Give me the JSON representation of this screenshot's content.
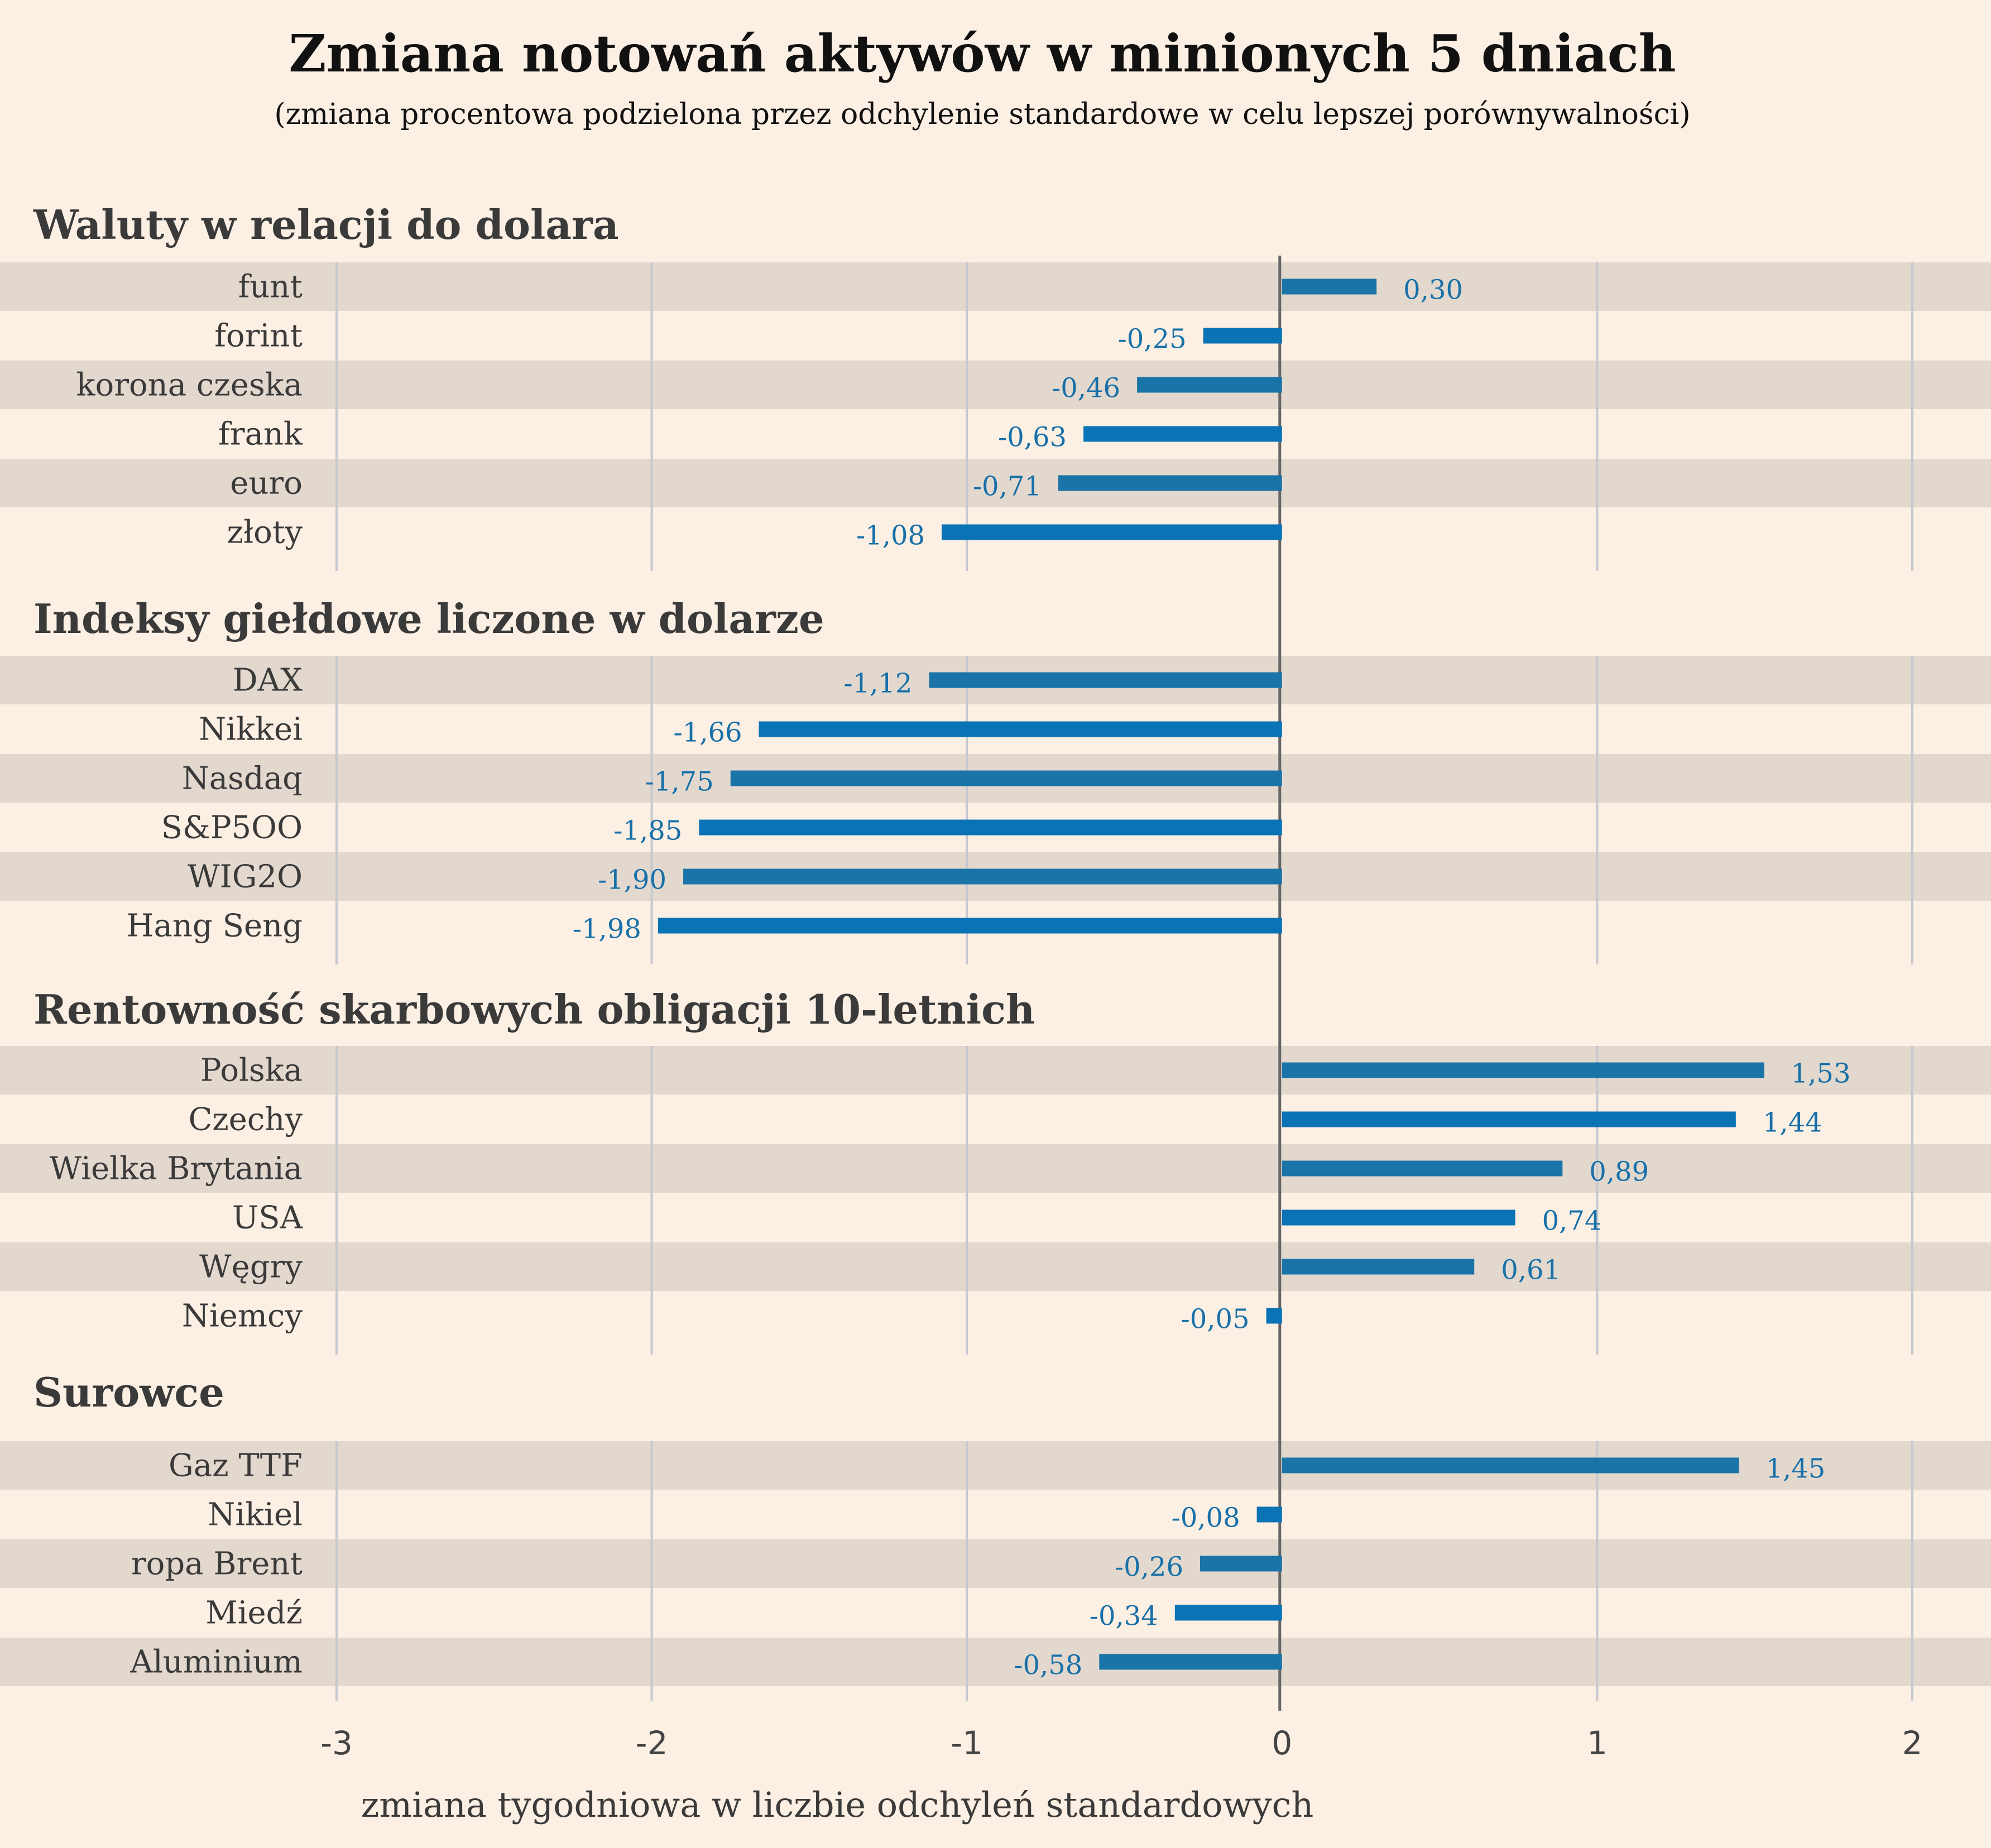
{
  "chart_data": {
    "type": "bar",
    "orientation": "horizontal",
    "title": "Zmiana notowań aktywów w minionych 5 dniach",
    "subtitle": "(zmiana procentowa podzielona przez odchylenie standardowe w celu lepszej porównywalności)",
    "xlabel": "zmiana tygodniowa w liczbie odchyleń standardowych",
    "xlim": [
      -3,
      2
    ],
    "xticks": [
      "-3",
      "-2",
      "-1",
      "0",
      "1",
      "2"
    ],
    "grid": true,
    "colors": {
      "background": "#fcefe3",
      "band": "#e2d8ce",
      "bar": "#1a74a8",
      "bar_alt": "#0a73b5",
      "value_label": "#1770a8",
      "zero_line": "#666666",
      "grid": "#c6c9cf"
    },
    "groups": [
      {
        "name": "Waluty w relacji do dolara",
        "categories": [
          "funt",
          "forint",
          "korona czeska",
          "frank",
          "euro",
          "złoty"
        ],
        "values": [
          0.3,
          -0.25,
          -0.46,
          -0.63,
          -0.71,
          -1.08
        ],
        "labels": [
          "0,30",
          "-0,25",
          "-0,46",
          "-0,63",
          "-0,71",
          "-1,08"
        ]
      },
      {
        "name": "Indeksy giełdowe liczone w dolarze",
        "categories": [
          "DAX",
          "Nikkei",
          "Nasdaq",
          "S&P5OO",
          "WIG2O",
          "Hang Seng"
        ],
        "values": [
          -1.12,
          -1.66,
          -1.75,
          -1.85,
          -1.9,
          -1.98
        ],
        "labels": [
          "-1,12",
          "-1,66",
          "-1,75",
          "-1,85",
          "-1,90",
          "-1,98"
        ]
      },
      {
        "name": "Rentowność skarbowych obligacji 10-letnich",
        "categories": [
          "Polska",
          "Czechy",
          "Wielka Brytania",
          "USA",
          "Węgry",
          "Niemcy"
        ],
        "values": [
          1.53,
          1.44,
          0.89,
          0.74,
          0.61,
          -0.05
        ],
        "labels": [
          "1,53",
          "1,44",
          "0,89",
          "0,74",
          "0,61",
          "-0,05"
        ]
      },
      {
        "name": "Surowce",
        "categories": [
          "Gaz TTF",
          "Nikiel",
          "ropa Brent",
          "Miedź",
          "Aluminium"
        ],
        "values": [
          1.45,
          -0.08,
          -0.26,
          -0.34,
          -0.58
        ],
        "labels": [
          "1,45",
          "-0,08",
          "-0,26",
          "-0,34",
          "-0,58"
        ]
      }
    ]
  }
}
